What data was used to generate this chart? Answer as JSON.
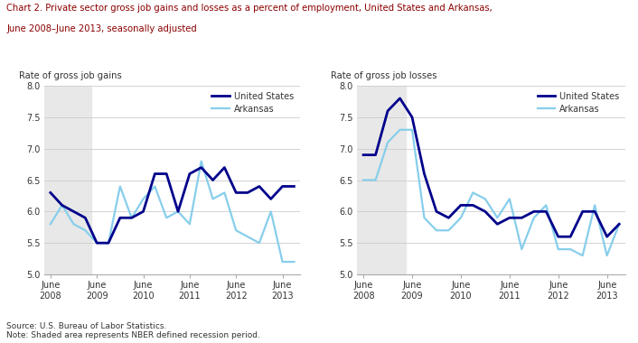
{
  "title_line1": "Chart 2. Private sector gross job gains and losses as a percent of employment, United States and Arkansas,",
  "title_line2": "June 2008–June 2013, seasonally adjusted",
  "gains_ylabel": "Rate of gross job gains",
  "losses_ylabel": "Rate of gross job losses",
  "x_labels": [
    "June\n2008",
    "June\n2009",
    "June\n2010",
    "June\n2011",
    "June\n2012",
    "June\n2013"
  ],
  "x_tick_pos": [
    0,
    4,
    8,
    12,
    16,
    20
  ],
  "gains_us": [
    6.3,
    6.1,
    6.0,
    5.9,
    5.5,
    5.5,
    5.9,
    5.9,
    6.0,
    6.6,
    6.6,
    6.0,
    6.6,
    6.7,
    6.5,
    6.7,
    6.3,
    6.3,
    6.4,
    6.2,
    6.4,
    6.4
  ],
  "gains_ar": [
    5.8,
    6.1,
    5.8,
    5.7,
    5.5,
    5.5,
    6.4,
    5.9,
    6.2,
    6.4,
    5.9,
    6.0,
    5.8,
    6.8,
    6.2,
    6.3,
    5.7,
    5.6,
    5.5,
    6.0,
    5.2,
    5.2
  ],
  "losses_us": [
    6.9,
    6.9,
    7.6,
    7.8,
    7.5,
    6.6,
    6.0,
    5.9,
    6.1,
    6.1,
    6.0,
    5.8,
    5.9,
    5.9,
    6.0,
    6.0,
    5.6,
    5.6,
    6.0,
    6.0,
    5.6,
    5.8
  ],
  "losses_ar": [
    6.5,
    6.5,
    7.1,
    7.3,
    7.3,
    5.9,
    5.7,
    5.7,
    5.9,
    6.3,
    6.2,
    5.9,
    6.2,
    5.4,
    5.9,
    6.1,
    5.4,
    5.4,
    5.3,
    6.1,
    5.3,
    5.8
  ],
  "us_color": "#00008B",
  "ar_color": "#87CEEB",
  "recession_color": "#E8E8E8",
  "recession_end_idx": 4,
  "ylim": [
    5.0,
    8.0
  ],
  "yticks": [
    5.0,
    5.5,
    6.0,
    6.5,
    7.0,
    7.5,
    8.0
  ],
  "title_color": "#8B0000",
  "text_color": "#333333",
  "source_note": "Source: U.S. Bureau of Labor Statistics.\nNote: Shaded area represents NBER defined recession period."
}
